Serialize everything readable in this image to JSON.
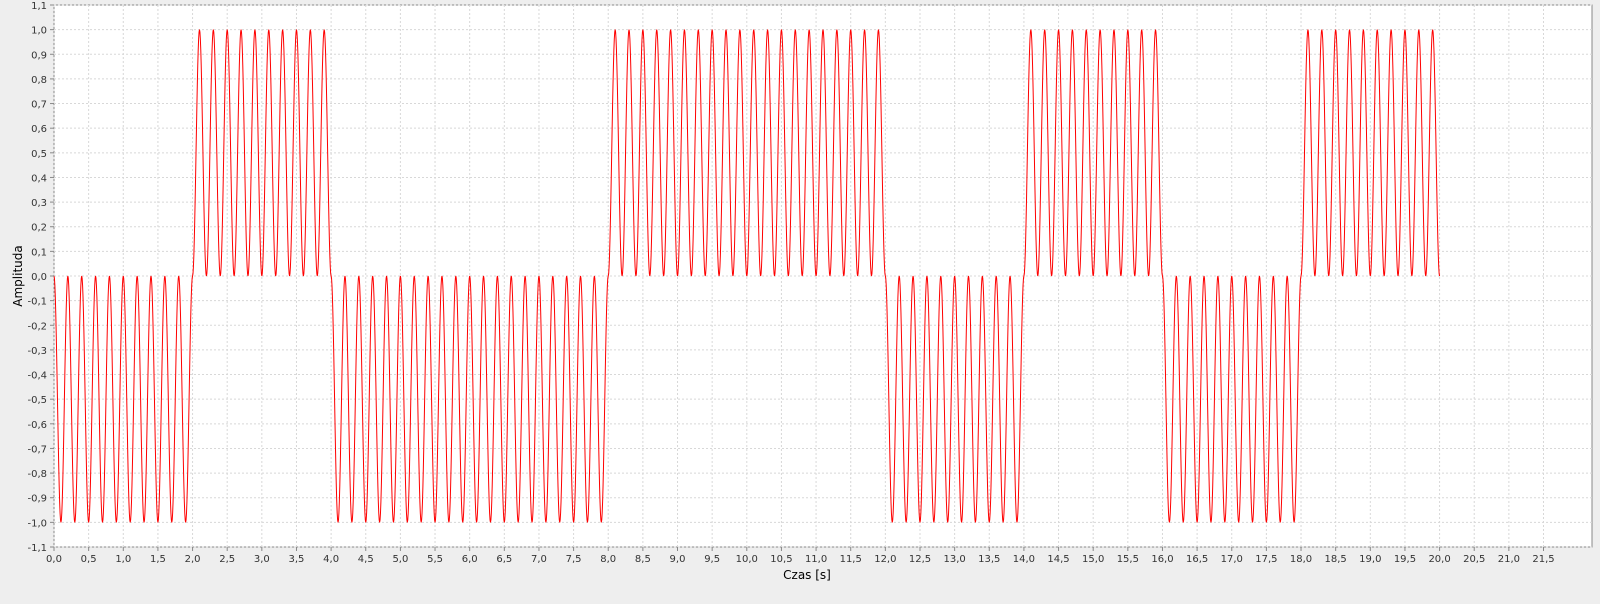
{
  "chart_data": {
    "type": "line",
    "title": "",
    "xlabel": "Czas [s]",
    "ylabel": "Amplituda",
    "xlim": [
      0,
      22.2
    ],
    "ylim": [
      -1.1,
      1.1
    ],
    "x_ticks": [
      "0,0",
      "0,5",
      "1,0",
      "1,5",
      "2,0",
      "2,5",
      "3,0",
      "3,5",
      "4,0",
      "4,5",
      "5,0",
      "5,5",
      "6,0",
      "6,5",
      "7,0",
      "7,5",
      "8,0",
      "8,5",
      "9,0",
      "9,5",
      "10,0",
      "10,5",
      "11,0",
      "11,5",
      "12,0",
      "12,5",
      "13,0",
      "13,5",
      "14,0",
      "14,5",
      "15,0",
      "15,5",
      "16,0",
      "16,5",
      "17,0",
      "17,5",
      "18,0",
      "18,5",
      "19,0",
      "19,5",
      "20,0",
      "20,5",
      "21,0",
      "21,5"
    ],
    "y_ticks": [
      "1,1",
      "1,0",
      "0,9",
      "0,8",
      "0,7",
      "0,6",
      "0,5",
      "0,4",
      "0,3",
      "0,2",
      "0,1",
      "0,0",
      "-0,1",
      "-0,2",
      "-0,3",
      "-0,4",
      "-0,5",
      "-0,6",
      "-0,7",
      "-0,8",
      "-0,9",
      "-1,0",
      "-1,1"
    ],
    "grid": true,
    "legend": "none",
    "series_color": "#ff0000",
    "series": [
      {
        "segments": [
          {
            "x_start": 0,
            "x_end": 2,
            "min": -1.0,
            "max": 0.0,
            "cycles": 10
          },
          {
            "x_start": 2,
            "x_end": 4,
            "min": 0.0,
            "max": 1.0,
            "cycles": 10
          },
          {
            "x_start": 4,
            "x_end": 8,
            "min": -1.0,
            "max": 0.0,
            "cycles": 20
          },
          {
            "x_start": 8,
            "x_end": 12,
            "min": 0.0,
            "max": 1.0,
            "cycles": 20
          },
          {
            "x_start": 12,
            "x_end": 14,
            "min": -1.0,
            "max": 0.0,
            "cycles": 10
          },
          {
            "x_start": 14,
            "x_end": 16,
            "min": 0.0,
            "max": 1.0,
            "cycles": 10
          },
          {
            "x_start": 16,
            "x_end": 18,
            "min": -1.0,
            "max": 0.0,
            "cycles": 10
          },
          {
            "x_start": 18,
            "x_end": 20,
            "min": 0.0,
            "max": 1.0,
            "cycles": 10
          }
        ]
      }
    ]
  }
}
